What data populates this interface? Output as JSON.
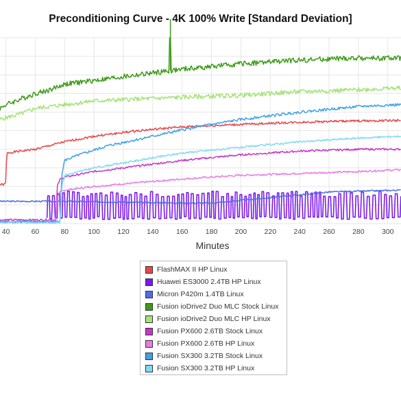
{
  "chart_data": {
    "type": "line",
    "title": "Preconditioning Curve - 4K 100% Write [Standard Deviation]",
    "xlabel": "Minutes",
    "ylabel": "",
    "xlim": [
      36,
      309
    ],
    "ylim": [
      0,
      100
    ],
    "x_ticks": [
      40,
      60,
      80,
      100,
      120,
      140,
      160,
      180,
      200,
      220,
      240,
      260,
      280,
      300
    ],
    "grid": true,
    "legend_position": "bottom",
    "series": [
      {
        "name": "FlashMAX II HP Linux",
        "color": "#e8464b",
        "style": "smooth",
        "points": [
          [
            36,
            21
          ],
          [
            38,
            21
          ],
          [
            39,
            21
          ],
          [
            40,
            22
          ],
          [
            40.5,
            36
          ],
          [
            41,
            38
          ],
          [
            50,
            39
          ],
          [
            60,
            40
          ],
          [
            70,
            42
          ],
          [
            80,
            44
          ],
          [
            100,
            47
          ],
          [
            130,
            50
          ],
          [
            160,
            52
          ],
          [
            190,
            53
          ],
          [
            220,
            54
          ],
          [
            260,
            55
          ],
          [
            309,
            55.5
          ]
        ],
        "noise": 0.6,
        "seed": 1
      },
      {
        "name": "Huawei ES3000 2.4TB HP Linux",
        "color": "#7a19f0",
        "style": "osc",
        "x_start": 68,
        "x_end": 309,
        "low": 3,
        "high": 16,
        "period": 3.2,
        "seed": 2
      },
      {
        "name": "Micron P420m 1.4TB Linux",
        "color": "#4c6ee8",
        "style": "smooth",
        "points": [
          [
            36,
            12
          ],
          [
            80,
            12
          ],
          [
            120,
            11.5
          ],
          [
            180,
            11
          ],
          [
            220,
            14
          ],
          [
            260,
            17
          ],
          [
            309,
            18
          ]
        ],
        "noise": 0.4,
        "seed": 3
      },
      {
        "name": "Fusion ioDrive2 Duo MLC Stock Linux",
        "color": "#3e9b1a",
        "style": "smooth",
        "points": [
          [
            36,
            62
          ],
          [
            40,
            64
          ],
          [
            50,
            67
          ],
          [
            60,
            70
          ],
          [
            70,
            72
          ],
          [
            80,
            75
          ],
          [
            100,
            77
          ],
          [
            130,
            80
          ],
          [
            160,
            83
          ],
          [
            200,
            86
          ],
          [
            240,
            88
          ],
          [
            280,
            89
          ],
          [
            309,
            89
          ]
        ],
        "noise": 1.4,
        "seed": 4,
        "spike": [
          152,
          100
        ]
      },
      {
        "name": "Fusion ioDrive2 Duo MLC HP Linux",
        "color": "#a7e27a",
        "style": "smooth",
        "points": [
          [
            36,
            56
          ],
          [
            40,
            57
          ],
          [
            50,
            59
          ],
          [
            60,
            62
          ],
          [
            70,
            63
          ],
          [
            80,
            64
          ],
          [
            100,
            66
          ],
          [
            130,
            67
          ],
          [
            160,
            68
          ],
          [
            200,
            69
          ],
          [
            240,
            71
          ],
          [
            280,
            72
          ],
          [
            309,
            73
          ]
        ],
        "noise": 1.2,
        "seed": 5
      },
      {
        "name": "Fusion PX600 2.6TB Stock Linux",
        "color": "#c635c8",
        "style": "smooth",
        "points": [
          [
            36,
            2
          ],
          [
            74,
            2
          ],
          [
            75,
            20
          ],
          [
            77,
            24
          ],
          [
            80,
            25
          ],
          [
            100,
            28
          ],
          [
            130,
            31
          ],
          [
            160,
            34
          ],
          [
            200,
            37
          ],
          [
            240,
            39
          ],
          [
            280,
            40
          ],
          [
            309,
            40
          ]
        ],
        "noise": 0.5,
        "seed": 6
      },
      {
        "name": "Fusion PX600 2.6TB HP Linux",
        "color": "#e87be5",
        "style": "smooth",
        "points": [
          [
            36,
            1
          ],
          [
            74,
            1
          ],
          [
            75,
            14
          ],
          [
            77,
            17
          ],
          [
            80,
            18
          ],
          [
            100,
            20
          ],
          [
            130,
            22
          ],
          [
            160,
            24
          ],
          [
            200,
            26
          ],
          [
            240,
            27
          ],
          [
            280,
            28
          ],
          [
            309,
            29
          ]
        ],
        "noise": 0.5,
        "seed": 7
      },
      {
        "name": "Fusion SX300 3.2TB Stock Linux",
        "color": "#3fa0e6",
        "style": "smooth",
        "points": [
          [
            36,
            1
          ],
          [
            77,
            1
          ],
          [
            78,
            26
          ],
          [
            80,
            34
          ],
          [
            90,
            37
          ],
          [
            110,
            42
          ],
          [
            140,
            47
          ],
          [
            170,
            52
          ],
          [
            200,
            56
          ],
          [
            240,
            60
          ],
          [
            280,
            63
          ],
          [
            309,
            64
          ]
        ],
        "noise": 0.7,
        "seed": 8
      },
      {
        "name": "Fusion SX300 3.2TB HP Linux",
        "color": "#7fd9f5",
        "style": "smooth",
        "points": [
          [
            36,
            0.5
          ],
          [
            77,
            0.5
          ],
          [
            78,
            20
          ],
          [
            80,
            26
          ],
          [
            100,
            30
          ],
          [
            130,
            34
          ],
          [
            160,
            38
          ],
          [
            200,
            41
          ],
          [
            240,
            44
          ],
          [
            280,
            46
          ],
          [
            309,
            47
          ]
        ],
        "noise": 0.5,
        "seed": 9
      }
    ]
  }
}
